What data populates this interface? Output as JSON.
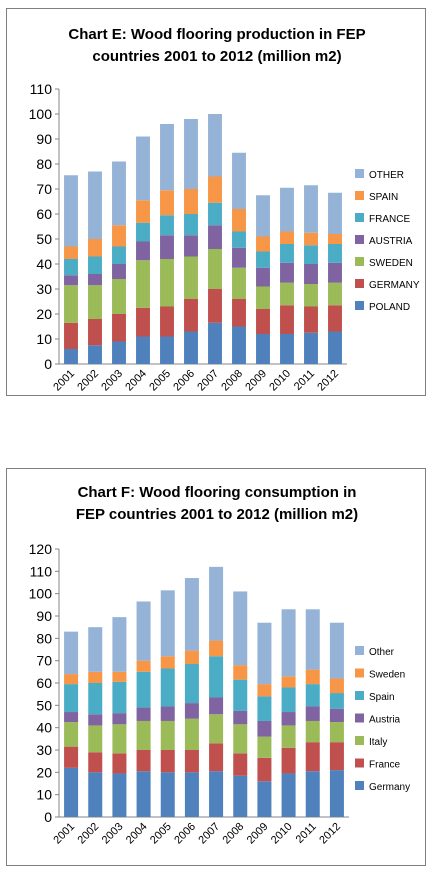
{
  "chart_data": [
    {
      "type": "bar",
      "stacked": true,
      "title": "Chart E: Wood flooring production in FEP countries 2001 to 2012 (million m2)",
      "title_lines": [
        "Chart E: Wood flooring production in FEP",
        "countries 2001 to 2012 (million m2)"
      ],
      "categories": [
        "2001",
        "2002",
        "2003",
        "2004",
        "2005",
        "2006",
        "2007",
        "2008",
        "2009",
        "2010",
        "2011",
        "2012"
      ],
      "ylim": [
        0,
        110
      ],
      "yticks": [
        0,
        10,
        20,
        30,
        40,
        50,
        60,
        70,
        80,
        90,
        100,
        110
      ],
      "grid": false,
      "legend_position": "right",
      "series": [
        {
          "name": "POLAND",
          "color": "#4f81bd",
          "values": [
            6,
            7.5,
            9,
            11,
            11,
            13,
            16.5,
            15,
            12,
            12,
            12.5,
            13
          ]
        },
        {
          "name": "GERMANY",
          "color": "#c0504d",
          "values": [
            10.5,
            10.5,
            11,
            11.5,
            12,
            13,
            13.5,
            11,
            10,
            11.5,
            10.5,
            10.5
          ]
        },
        {
          "name": "SWEDEN",
          "color": "#9bbb59",
          "values": [
            15,
            13.5,
            14,
            19,
            19,
            17,
            16,
            12.5,
            9,
            9,
            9,
            9
          ]
        },
        {
          "name": "AUSTRIA",
          "color": "#8064a2",
          "values": [
            4,
            4.5,
            6,
            7.5,
            9.5,
            8.5,
            9.5,
            8,
            7.5,
            8,
            8,
            8
          ]
        },
        {
          "name": "FRANCE",
          "color": "#4bacc6",
          "values": [
            6.5,
            7,
            7,
            7.5,
            8,
            8.5,
            9,
            6.5,
            6.5,
            7.5,
            7.5,
            7.5
          ]
        },
        {
          "name": "SPAIN",
          "color": "#f79646",
          "values": [
            5,
            7,
            8.5,
            9,
            10,
            10,
            10.5,
            9,
            6,
            5,
            5,
            4
          ]
        },
        {
          "name": "OTHER",
          "color": "#95b3d7",
          "values": [
            28.5,
            27,
            25.5,
            25.5,
            26.5,
            28,
            25,
            22.5,
            16.5,
            17.5,
            19,
            16.5
          ]
        }
      ]
    },
    {
      "type": "bar",
      "stacked": true,
      "title": "Chart F: Wood flooring consumption in FEP countries 2001 to 2012 (million m2)",
      "title_lines": [
        "Chart F: Wood flooring consumption in",
        "FEP countries 2001 to 2012 (million m2)"
      ],
      "categories": [
        "2001",
        "2002",
        "2003",
        "2004",
        "2005",
        "2006",
        "2007",
        "2008",
        "2009",
        "2010",
        "2011",
        "2012"
      ],
      "ylim": [
        0,
        120
      ],
      "yticks": [
        0,
        10,
        20,
        30,
        40,
        50,
        60,
        70,
        80,
        90,
        100,
        110,
        120
      ],
      "grid": false,
      "legend_position": "right",
      "series": [
        {
          "name": "Germany",
          "color": "#4f81bd",
          "values": [
            22,
            20,
            19.5,
            20.5,
            20,
            20,
            20.5,
            18.5,
            16,
            19.5,
            20.5,
            21
          ]
        },
        {
          "name": "France",
          "color": "#c0504d",
          "values": [
            9.5,
            9,
            9,
            9.5,
            10,
            10,
            12.5,
            10,
            10.5,
            11.5,
            13,
            12.5
          ]
        },
        {
          "name": "Italy",
          "color": "#9bbb59",
          "values": [
            11,
            12,
            13,
            13,
            13,
            14,
            13,
            13,
            9.5,
            10,
            9.5,
            9
          ]
        },
        {
          "name": "Austria",
          "color": "#8064a2",
          "values": [
            4.5,
            5,
            5,
            6,
            6.5,
            7,
            7.5,
            6,
            7,
            6,
            6.5,
            6
          ]
        },
        {
          "name": "Spain",
          "color": "#4bacc6",
          "values": [
            12.5,
            14,
            14,
            16,
            17,
            17.5,
            18.5,
            14,
            11,
            11,
            10,
            7
          ]
        },
        {
          "name": "Sweden",
          "color": "#f79646",
          "values": [
            4.5,
            5,
            4.5,
            5,
            5.5,
            6,
            7,
            6.5,
            5.5,
            5,
            6.5,
            6.5
          ]
        },
        {
          "name": "Other",
          "color": "#95b3d7",
          "values": [
            19,
            20,
            24.5,
            26.5,
            29.5,
            32.5,
            33,
            33,
            27.5,
            30,
            27,
            25
          ]
        }
      ]
    }
  ]
}
